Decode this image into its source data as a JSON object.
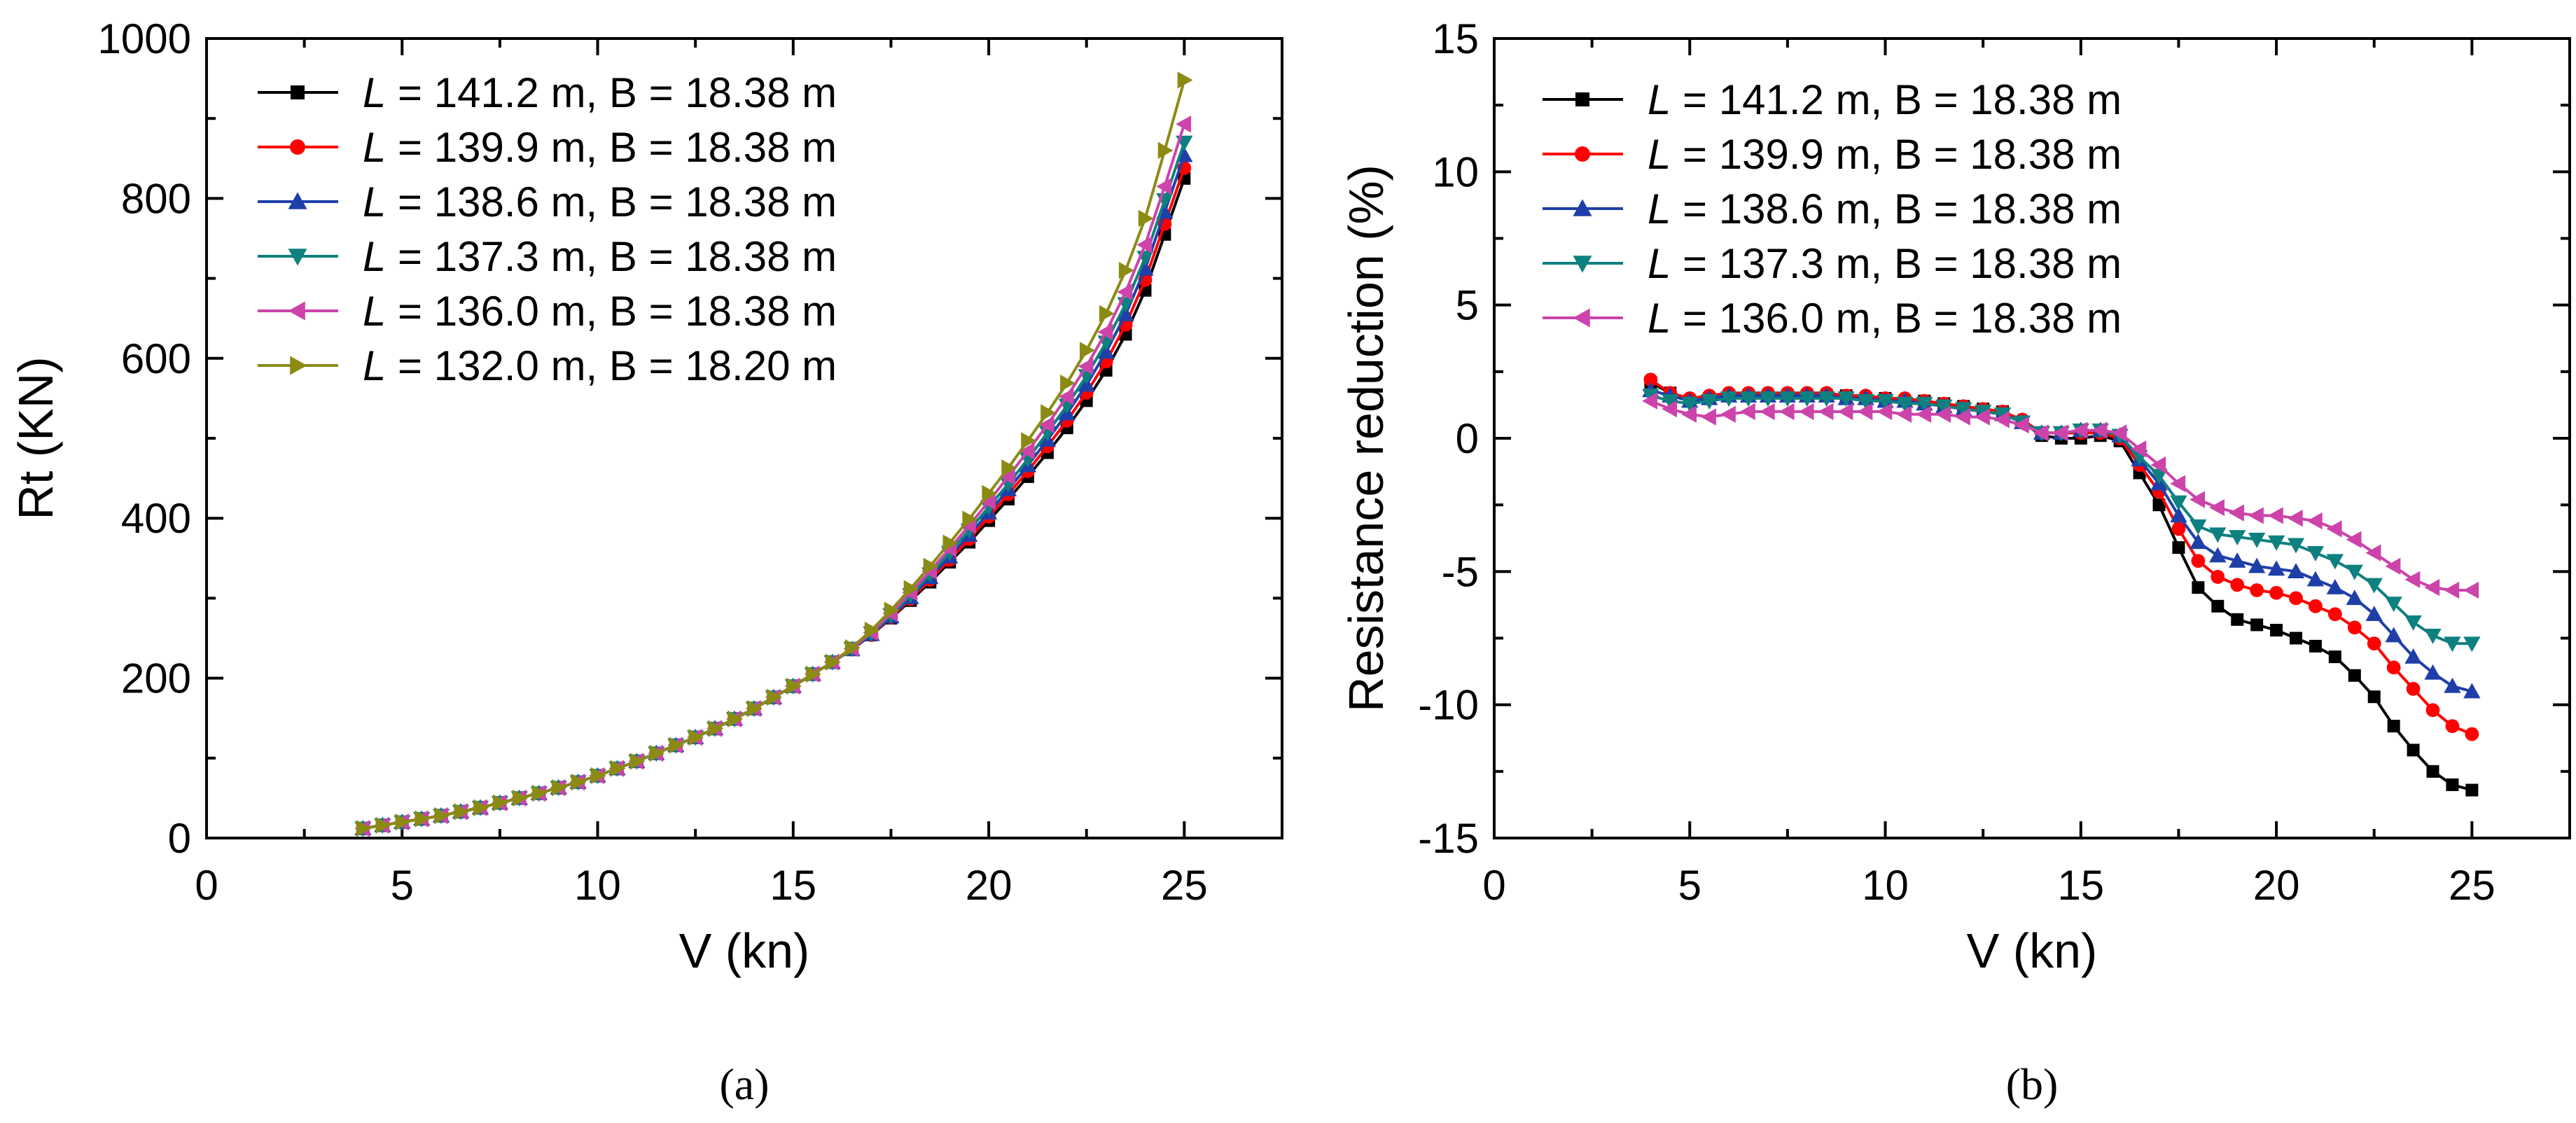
{
  "figure": {
    "caption_a": "(a)",
    "caption_b": "(b)"
  },
  "chart_data": [
    {
      "type": "line",
      "panel": "a",
      "title": "",
      "xlabel": "V (kn)",
      "ylabel": "Rt (KN)",
      "xlim": [
        0,
        27.5
      ],
      "ylim": [
        0,
        1000
      ],
      "xticks": [
        0,
        5,
        10,
        15,
        20,
        25
      ],
      "yticks": [
        0,
        200,
        400,
        600,
        800,
        1000
      ],
      "legend_position": "top-left",
      "x": [
        4.0,
        4.5,
        5.0,
        5.5,
        6.0,
        6.5,
        7.0,
        7.5,
        8.0,
        8.5,
        9.0,
        9.5,
        10.0,
        10.5,
        11.0,
        11.5,
        12.0,
        12.5,
        13.0,
        13.5,
        14.0,
        14.5,
        15.0,
        15.5,
        16.0,
        16.5,
        17.0,
        17.5,
        18.0,
        18.5,
        19.0,
        19.5,
        20.0,
        20.5,
        21.0,
        21.5,
        22.0,
        22.5,
        23.0,
        23.5,
        24.0,
        24.5,
        25.0
      ],
      "series": [
        {
          "name_prefix": "L",
          "name_suffix": " = 141.2 m, B = 18.38 m",
          "color": "#000000",
          "marker": "square",
          "values": [
            12,
            16,
            20,
            24,
            28,
            33,
            38,
            44,
            50,
            56,
            63,
            70,
            78,
            87,
            96,
            106,
            116,
            126,
            137,
            149,
            162,
            176,
            190,
            205,
            220,
            236,
            254,
            275,
            297,
            320,
            345,
            370,
            397,
            424,
            452,
            482,
            513,
            547,
            585,
            630,
            685,
            755,
            825
          ]
        },
        {
          "name_prefix": "L",
          "name_suffix": " = 139.9 m, B = 18.38 m",
          "color": "#ff0000",
          "marker": "circle",
          "values": [
            12,
            16,
            20,
            24,
            28,
            33,
            38,
            44,
            50,
            56,
            63,
            70,
            78,
            87,
            96,
            106,
            116,
            126,
            137,
            149,
            162,
            176,
            190,
            205,
            220,
            236,
            254,
            276,
            299,
            323,
            348,
            374,
            402,
            430,
            459,
            490,
            522,
            557,
            596,
            642,
            698,
            768,
            838
          ]
        },
        {
          "name_prefix": "L",
          "name_suffix": " = 138.6 m, B = 18.38 m",
          "color": "#1f3fa8",
          "marker": "triangle-up",
          "values": [
            12,
            16,
            20,
            24,
            28,
            33,
            38,
            44,
            50,
            56,
            63,
            70,
            78,
            87,
            96,
            106,
            116,
            126,
            137,
            149,
            162,
            176,
            190,
            205,
            220,
            236,
            255,
            277,
            301,
            326,
            352,
            379,
            407,
            436,
            466,
            498,
            531,
            567,
            608,
            655,
            712,
            783,
            854
          ]
        },
        {
          "name_prefix": "L",
          "name_suffix": " = 137.3 m, B = 18.38 m",
          "color": "#0f8080",
          "marker": "triangle-down",
          "values": [
            12,
            16,
            20,
            24,
            28,
            33,
            38,
            44,
            50,
            56,
            63,
            70,
            78,
            87,
            96,
            106,
            116,
            126,
            137,
            149,
            162,
            176,
            190,
            205,
            220,
            237,
            256,
            279,
            304,
            330,
            357,
            385,
            414,
            443,
            474,
            507,
            541,
            578,
            620,
            668,
            726,
            798,
            870
          ]
        },
        {
          "name_prefix": "L",
          "name_suffix": " = 136.0 m, B = 18.38 m",
          "color": "#cc44aa",
          "marker": "triangle-left",
          "values": [
            12,
            16,
            20,
            24,
            28,
            33,
            38,
            44,
            50,
            56,
            63,
            70,
            78,
            87,
            96,
            106,
            116,
            126,
            137,
            149,
            162,
            176,
            190,
            205,
            220,
            237,
            257,
            281,
            307,
            334,
            362,
            391,
            421,
            452,
            484,
            517,
            552,
            590,
            633,
            683,
            742,
            815,
            893
          ]
        },
        {
          "name_prefix": "L",
          "name_suffix": " = 132.0 m, B = 18.20 m",
          "color": "#8b8b14",
          "marker": "triangle-right",
          "values": [
            12,
            16,
            20,
            24,
            28,
            33,
            38,
            44,
            50,
            56,
            63,
            70,
            78,
            87,
            96,
            106,
            116,
            126,
            137,
            149,
            162,
            176,
            190,
            205,
            220,
            238,
            260,
            285,
            312,
            340,
            369,
            399,
            431,
            463,
            497,
            532,
            569,
            610,
            656,
            710,
            775,
            860,
            948
          ]
        }
      ]
    },
    {
      "type": "line",
      "panel": "b",
      "title": "",
      "xlabel": "V (kn)",
      "ylabel": "Resistance reduction (%)",
      "xlim": [
        0,
        27.5
      ],
      "ylim": [
        -15,
        15
      ],
      "xticks": [
        0,
        5,
        10,
        15,
        20,
        25
      ],
      "yticks": [
        -15,
        -10,
        -5,
        0,
        5,
        10,
        15
      ],
      "legend_position": "top-left",
      "x": [
        4.0,
        4.5,
        5.0,
        5.5,
        6.0,
        6.5,
        7.0,
        7.5,
        8.0,
        8.5,
        9.0,
        9.5,
        10.0,
        10.5,
        11.0,
        11.5,
        12.0,
        12.5,
        13.0,
        13.5,
        14.0,
        14.5,
        15.0,
        15.5,
        16.0,
        16.5,
        17.0,
        17.5,
        18.0,
        18.5,
        19.0,
        19.5,
        20.0,
        20.5,
        21.0,
        21.5,
        22.0,
        22.5,
        23.0,
        23.5,
        24.0,
        24.5,
        25.0
      ],
      "series": [
        {
          "name_prefix": "L",
          "name_suffix": " = 141.2 m, B = 18.38 m",
          "color": "#000000",
          "marker": "square",
          "values": [
            2.1,
            1.7,
            1.4,
            1.5,
            1.6,
            1.6,
            1.6,
            1.6,
            1.6,
            1.6,
            1.6,
            1.5,
            1.5,
            1.4,
            1.4,
            1.3,
            1.2,
            1.1,
            1.0,
            0.6,
            0.1,
            0.0,
            0.0,
            0.1,
            -0.1,
            -1.3,
            -2.5,
            -4.1,
            -5.6,
            -6.3,
            -6.8,
            -7.0,
            -7.2,
            -7.5,
            -7.8,
            -8.2,
            -8.9,
            -9.7,
            -10.8,
            -11.7,
            -12.5,
            -13.0,
            -13.2
          ]
        },
        {
          "name_prefix": "L",
          "name_suffix": " = 139.9 m, B = 18.38 m",
          "color": "#ff0000",
          "marker": "circle",
          "values": [
            2.2,
            1.7,
            1.5,
            1.6,
            1.7,
            1.7,
            1.7,
            1.7,
            1.7,
            1.7,
            1.6,
            1.6,
            1.5,
            1.5,
            1.4,
            1.3,
            1.2,
            1.1,
            1.0,
            0.7,
            0.2,
            0.2,
            0.2,
            0.2,
            0.0,
            -1.0,
            -2.0,
            -3.4,
            -4.6,
            -5.2,
            -5.5,
            -5.7,
            -5.8,
            -6.0,
            -6.3,
            -6.6,
            -7.1,
            -7.7,
            -8.6,
            -9.4,
            -10.2,
            -10.8,
            -11.1
          ]
        },
        {
          "name_prefix": "L",
          "name_suffix": " = 138.6 m, B = 18.38 m",
          "color": "#1f3fa8",
          "marker": "triangle-up",
          "values": [
            1.8,
            1.6,
            1.4,
            1.5,
            1.6,
            1.6,
            1.6,
            1.6,
            1.6,
            1.6,
            1.5,
            1.5,
            1.4,
            1.4,
            1.3,
            1.2,
            1.1,
            1.0,
            0.9,
            0.6,
            0.2,
            0.2,
            0.3,
            0.3,
            0.1,
            -0.8,
            -1.7,
            -2.9,
            -3.9,
            -4.4,
            -4.6,
            -4.8,
            -4.9,
            -5.0,
            -5.3,
            -5.6,
            -6.0,
            -6.6,
            -7.4,
            -8.2,
            -8.8,
            -9.3,
            -9.5
          ]
        },
        {
          "name_prefix": "L",
          "name_suffix": " = 137.3 m, B = 18.38 m",
          "color": "#0f8080",
          "marker": "triangle-down",
          "values": [
            1.6,
            1.4,
            1.3,
            1.4,
            1.5,
            1.5,
            1.5,
            1.5,
            1.5,
            1.5,
            1.5,
            1.4,
            1.4,
            1.3,
            1.3,
            1.2,
            1.1,
            1.0,
            0.9,
            0.6,
            0.2,
            0.2,
            0.3,
            0.3,
            0.1,
            -0.7,
            -1.4,
            -2.4,
            -3.3,
            -3.6,
            -3.7,
            -3.8,
            -3.9,
            -4.0,
            -4.3,
            -4.6,
            -5.0,
            -5.5,
            -6.2,
            -6.9,
            -7.4,
            -7.7,
            -7.7
          ]
        },
        {
          "name_prefix": "L",
          "name_suffix": " = 136.0 m, B = 18.38 m",
          "color": "#cc44aa",
          "marker": "triangle-left",
          "values": [
            1.4,
            1.1,
            0.9,
            0.8,
            0.9,
            1.0,
            1.0,
            1.0,
            1.0,
            1.0,
            1.0,
            1.0,
            1.0,
            0.9,
            0.9,
            0.9,
            0.8,
            0.8,
            0.7,
            0.5,
            0.2,
            0.2,
            0.3,
            0.3,
            0.2,
            -0.4,
            -1.0,
            -1.7,
            -2.3,
            -2.6,
            -2.8,
            -2.9,
            -2.9,
            -3.0,
            -3.1,
            -3.4,
            -3.8,
            -4.3,
            -4.8,
            -5.3,
            -5.6,
            -5.7,
            -5.7
          ]
        }
      ]
    }
  ]
}
